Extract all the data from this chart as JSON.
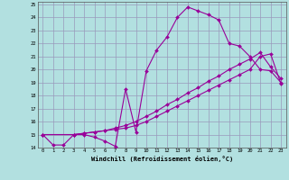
{
  "xlabel": "Windchill (Refroidissement éolien,°C)",
  "background_color": "#b2e0e0",
  "grid_color": "#9999bb",
  "line_color": "#990099",
  "xlim": [
    -0.5,
    23.5
  ],
  "ylim": [
    14,
    25.2
  ],
  "xticks": [
    0,
    1,
    2,
    3,
    4,
    5,
    6,
    7,
    8,
    9,
    10,
    11,
    12,
    13,
    14,
    15,
    16,
    17,
    18,
    19,
    20,
    21,
    22,
    23
  ],
  "yticks": [
    14,
    15,
    16,
    17,
    18,
    19,
    20,
    21,
    22,
    23,
    24,
    25
  ],
  "series1_x": [
    0,
    1,
    2,
    3,
    4,
    5,
    6,
    7,
    8,
    9,
    10,
    11,
    12,
    13,
    14,
    15,
    16,
    17,
    18,
    19,
    20,
    21,
    22,
    23
  ],
  "series1_y": [
    15.0,
    14.2,
    14.2,
    15.0,
    15.0,
    14.8,
    14.5,
    14.1,
    18.5,
    15.2,
    19.9,
    21.5,
    22.5,
    24.0,
    24.8,
    24.5,
    24.2,
    23.8,
    22.0,
    21.8,
    21.0,
    20.0,
    19.9,
    19.0
  ],
  "series2_x": [
    0,
    3,
    4,
    5,
    6,
    7,
    8,
    9,
    10,
    11,
    12,
    13,
    14,
    15,
    16,
    17,
    18,
    19,
    20,
    21,
    22,
    23
  ],
  "series2_y": [
    15.0,
    15.0,
    15.1,
    15.2,
    15.3,
    15.4,
    15.5,
    15.7,
    16.0,
    16.4,
    16.8,
    17.2,
    17.6,
    18.0,
    18.4,
    18.8,
    19.2,
    19.6,
    20.0,
    21.0,
    21.2,
    18.9
  ],
  "series3_x": [
    0,
    3,
    4,
    5,
    6,
    7,
    8,
    9,
    10,
    11,
    12,
    13,
    14,
    15,
    16,
    17,
    18,
    19,
    20,
    21,
    22,
    23
  ],
  "series3_y": [
    15.0,
    15.0,
    15.1,
    15.2,
    15.3,
    15.5,
    15.7,
    16.0,
    16.4,
    16.8,
    17.3,
    17.7,
    18.2,
    18.6,
    19.1,
    19.5,
    20.0,
    20.4,
    20.8,
    21.3,
    20.2,
    19.3
  ]
}
